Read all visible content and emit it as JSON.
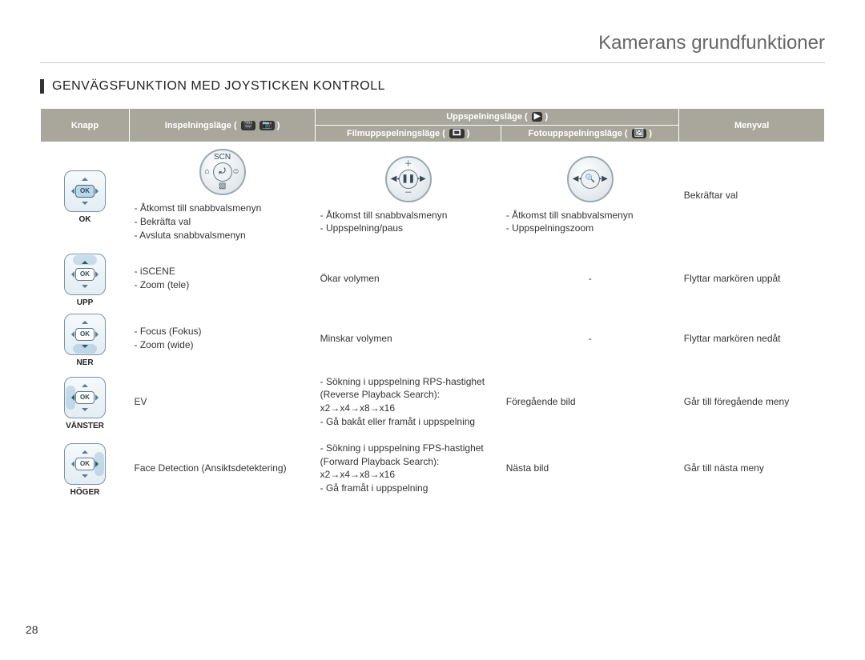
{
  "page": {
    "header": "Kamerans grundfunktioner",
    "section_title": "GENVÄGSFUNKTION MED JOYSTICKEN KONTROLL",
    "page_number": "28"
  },
  "table": {
    "headers": {
      "knapp": "Knapp",
      "inspelningslage": "Inspelningsläge (",
      "uppspelningslage": "Uppspelningsläge (",
      "filmuppspelningslage": "Filmuppspelningsläge (",
      "fotouppspelningslage": "Fotouppspelningsläge (",
      "menyval": "Menyval",
      "icon_close": ")"
    },
    "rows": [
      {
        "knapp_label": "OK",
        "highlight": "ok",
        "mode_icons": {
          "rec": {
            "center": "⤾",
            "t": "SCN",
            "b": "▧",
            "l": "⌂",
            "r": "☺"
          },
          "film": {
            "center": "❚❚",
            "t": "＋",
            "b": "－",
            "l": "◀◀",
            "r": "▶▶"
          },
          "foto": {
            "center": "🔍",
            "t": "",
            "b": "",
            "l": "◀◀",
            "r": "▶▶"
          }
        },
        "rec": "- Åtkomst till snabbvalsmenyn\n- Bekräfta val\n- Avsluta snabbvalsmenyn",
        "film": "- Åtkomst till snabbvalsmenyn\n- Uppspelning/paus",
        "foto": "- Åtkomst till snabbvalsmenyn\n- Uppspelningszoom",
        "menu": "Bekräftar val"
      },
      {
        "knapp_label": "UPP",
        "highlight": "up",
        "rec": "- iSCENE\n- Zoom (tele)",
        "film": "Ökar volymen",
        "foto": "-",
        "menu": "Flyttar markören uppåt"
      },
      {
        "knapp_label": "NER",
        "highlight": "down",
        "rec": "- Focus (Fokus)\n- Zoom (wide)",
        "film": "Minskar volymen",
        "foto": "-",
        "menu": "Flyttar markören nedåt"
      },
      {
        "knapp_label": "VÄNSTER",
        "highlight": "left",
        "rec": "EV",
        "film": "- Sökning i uppspelning RPS-hastighet (Reverse Playback Search): x2→x4→x8→x16\n- Gå bakåt eller framåt i uppspelning",
        "foto": "Föregående bild",
        "menu": "Går till föregående meny"
      },
      {
        "knapp_label": "HÖGER",
        "highlight": "right",
        "rec": "Face Detection (Ansiktsdetektering)",
        "film": "- Sökning i uppspelning FPS-hastighet (Forward  Playback Search): x2→x4→x8→x16\n- Gå framåt i uppspelning",
        "foto": "Nästa bild",
        "menu": "Går till nästa meny"
      }
    ]
  },
  "colors": {
    "header_bg": "#a9a79c",
    "header_fg": "#ffffff",
    "joy_border": "#7a93a5",
    "page_bg": "#ffffff"
  }
}
